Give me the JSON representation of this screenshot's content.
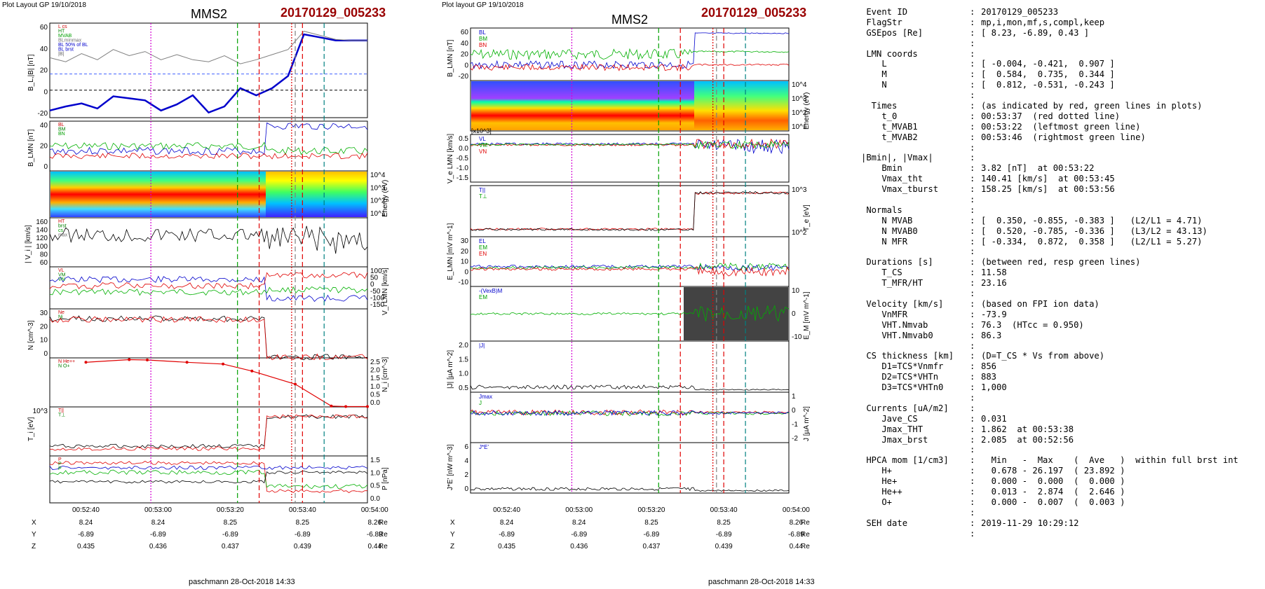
{
  "left_panel": {
    "header": "Plot Layout GP 19/10/2018",
    "spacecraft": "MMS2",
    "event": "20170129_005233",
    "footer": "paschmann 28-Oct-2018 14:33",
    "xtick_labels": [
      "00:52:40",
      "00:53:00",
      "00:53:20",
      "00:53:40",
      "00:54:00"
    ],
    "coord_rows": [
      {
        "label": "X",
        "values": [
          "8.24",
          "8.24",
          "8.25",
          "8.25",
          "8.26"
        ],
        "unit": "Re"
      },
      {
        "label": "Y",
        "values": [
          "-6.89",
          "-6.89",
          "-6.89",
          "-6.89",
          "-6.89"
        ],
        "unit": "Re"
      },
      {
        "label": "Z",
        "values": [
          "0.435",
          "0.436",
          "0.437",
          "0.439",
          "0.44"
        ],
        "unit": "Re"
      }
    ]
  },
  "middle_panel": {
    "header": "Plot layout GP 19/10/2018",
    "spacecraft": "MMS2",
    "event": "20170129_005233",
    "footer": "paschmann 28-Oct-2018 14:33",
    "xtick_labels": [
      "00:52:40",
      "00:53:00",
      "00:53:20",
      "00:53:40",
      "00:54:00"
    ],
    "coord_rows": [
      {
        "label": "X",
        "values": [
          "8.24",
          "8.24",
          "8.25",
          "8.25",
          "8.26"
        ],
        "unit": "Re"
      },
      {
        "label": "Y",
        "values": [
          "-6.89",
          "-6.89",
          "-6.89",
          "-6.89",
          "-6.89"
        ],
        "unit": "Re"
      },
      {
        "label": "Z",
        "values": [
          "0.435",
          "0.436",
          "0.437",
          "0.439",
          "0.44"
        ],
        "unit": "Re"
      }
    ]
  },
  "chart_data": [
    {
      "type": "line",
      "figure": "left",
      "x_range_seconds_after_0052": [
        30,
        118
      ],
      "markers": [
        {
          "time": "00:52:58",
          "style": "dotted",
          "color": "#d400d4"
        },
        {
          "time": "00:53:22",
          "style": "dashed",
          "color": "#00a000"
        },
        {
          "time": "00:53:28",
          "style": "dashed",
          "color": "#e00000"
        },
        {
          "time": "00:53:37",
          "style": "dotted",
          "color": "#e00000"
        },
        {
          "time": "00:53:38",
          "style": "dashed",
          "color": "#808080"
        },
        {
          "time": "00:53:40",
          "style": "dashed",
          "color": "#e00000"
        },
        {
          "time": "00:53:46",
          "style": "dashed",
          "color": "#008080"
        }
      ],
      "panels": [
        {
          "ylabel": "B_L,|B| [nT]",
          "ticks": [
            "60",
            "40",
            "20",
            "0",
            "-20"
          ],
          "legend": [
            "L cs",
            "HT",
            "MVAB",
            "BLminmax",
            "BL 50% of BL",
            "BL brst",
            "|B|"
          ],
          "series": [
            {
              "name": "BL brst",
              "color": "#0000cc",
              "values": [
                -20,
                -16,
                -13,
                -18,
                -6,
                -8,
                -10,
                -20,
                -14,
                -5,
                -22,
                -16,
                2,
                -5,
                2,
                14,
                55,
                52,
                49,
                49,
                49
              ]
            }
          ]
        },
        {
          "ylabel": "B_LMN [nT]",
          "ticks": [
            "40",
            "20",
            "0"
          ],
          "legend": [
            "BL",
            "BM",
            "BN"
          ]
        },
        {
          "ylabel": "Energy (eV)",
          "ticks": [
            "10^4",
            "10^3",
            "10^2",
            "10^1"
          ],
          "type": "heatmap"
        },
        {
          "ylabel": "|V_i| [km/s]",
          "ticks": [
            "160",
            "140",
            "120",
            "100",
            "80",
            "60"
          ],
          "legend": [
            "HT",
            "brst",
            "cs",
            "max"
          ]
        },
        {
          "ylabel": "V_i LMN [km/s]",
          "ticks": [
            "100",
            "50",
            "0",
            "-50",
            "-100",
            "-150"
          ],
          "legend": [
            "VL",
            "VM",
            "VN"
          ]
        },
        {
          "ylabel": "N [cm^-3]",
          "ticks": [
            "30",
            "20",
            "10",
            "0"
          ],
          "legend": [
            "Ne",
            "Ni"
          ]
        },
        {
          "ylabel": "N_i [cm^-3]",
          "ticks": [
            "2.5",
            "2.0",
            "1.5",
            "1.0",
            "0.5",
            "0.0"
          ],
          "legend": [
            "N He++",
            "N O+"
          ],
          "series": [
            {
              "name": "N He++",
              "color": "#e00000",
              "values": [
                2.55,
                2.7,
                2.68,
                2.55,
                2.45,
                2.05,
                1.3,
                0.05,
                0.02,
                0.02
              ]
            }
          ]
        },
        {
          "ylabel": "T_i [eV]",
          "ticks": [
            "10^3"
          ],
          "legend": [
            "T||",
            "T⊥"
          ]
        },
        {
          "ylabel": "P [nPa]",
          "ticks": [
            "1.5",
            "1.0",
            "0.5",
            "0.0"
          ],
          "legend": [
            "P",
            "P",
            "P"
          ]
        }
      ]
    },
    {
      "type": "line",
      "figure": "middle",
      "panels": [
        {
          "ylabel": "B_LMN [nT]",
          "ticks": [
            "60",
            "40",
            "20",
            "0",
            "-20"
          ],
          "legend": [
            "BL",
            "BM",
            "BN"
          ]
        },
        {
          "ylabel": "Energy (eV)",
          "ticks": [
            "10^4",
            "10^3",
            "10^2",
            "10^1"
          ],
          "type": "heatmap"
        },
        {
          "ylabel": "V_e LMN [km/s]",
          "ticks": [
            "0.5",
            "0.0",
            "-0.5",
            "-1.0",
            "-1.5"
          ],
          "scale": "[x10^3]",
          "legend": [
            "VL",
            "VM",
            "VN"
          ]
        },
        {
          "ylabel": "T_e [eV]",
          "ticks": [
            "10^3",
            "10^2"
          ],
          "legend": [
            "T||",
            "T⊥"
          ]
        },
        {
          "ylabel": "E_LMN [mV m^-1]",
          "ticks": [
            "30",
            "20",
            "10",
            "0",
            "-10"
          ],
          "legend": [
            "EL",
            "EM",
            "EN"
          ]
        },
        {
          "ylabel": "E_M [mV m^-1]",
          "ticks": [
            "10",
            "0",
            "-10"
          ],
          "legend": [
            "-(VexB)M",
            "EM"
          ]
        },
        {
          "ylabel": "|J| [µA m^-2]",
          "ticks": [
            "2.0",
            "1.5",
            "1.0",
            "0.5"
          ],
          "legend": [
            "|J|"
          ]
        },
        {
          "ylabel": "J [µA m^-2]",
          "ticks": [
            "1",
            "0",
            "-1",
            "-2"
          ],
          "legend": [
            "Jmax",
            "J"
          ]
        },
        {
          "ylabel": "J*E' [nW m^-3]",
          "ticks": [
            "6",
            "4",
            "2",
            "0"
          ],
          "legend": [
            "J*E'"
          ]
        }
      ]
    }
  ],
  "summary": [
    {
      "label": " Event ID",
      "value": "20170129_005233"
    },
    {
      "label": " FlagStr",
      "value": "mp,i,mon,mf,s,compl,keep"
    },
    {
      "label": " GSEpos [Re]",
      "value": "[ 8.23, -6.89, 0.43 ]"
    },
    {
      "label": "",
      "value": ""
    },
    {
      "label": " LMN coords",
      "value": ""
    },
    {
      "label": "    L",
      "value": "[ -0.004, -0.421,  0.907 ]"
    },
    {
      "label": "    M",
      "value": "[  0.584,  0.735,  0.344 ]"
    },
    {
      "label": "    N",
      "value": "[  0.812, -0.531, -0.243 ]"
    },
    {
      "label": "",
      "value": ""
    },
    {
      "label": "  Times",
      "value": "(as indicated by red, green lines in plots)"
    },
    {
      "label": "    t_0",
      "value": "00:53:37  (red dotted line)"
    },
    {
      "label": "    t_MVAB1",
      "value": "00:53:22  (leftmost green line)"
    },
    {
      "label": "    t_MVAB2",
      "value": "00:53:46  (rightmost green line)"
    },
    {
      "label": "",
      "value": ""
    },
    {
      "label": "|Bmin|, |Vmax|",
      "value": ""
    },
    {
      "label": "    Bmin",
      "value": "3.82 [nT]  at 00:53:22"
    },
    {
      "label": "    Vmax_tht",
      "value": "140.41 [km/s]  at 00:53:45"
    },
    {
      "label": "    Vmax_tburst",
      "value": "158.25 [km/s]  at 00:53:56"
    },
    {
      "label": "",
      "value": ""
    },
    {
      "label": " Normals",
      "value": ""
    },
    {
      "label": "    N MVAB",
      "value": "[  0.350, -0.855, -0.383 ]   (L2/L1 = 4.71)"
    },
    {
      "label": "    N MVAB0",
      "value": "[  0.520, -0.785, -0.336 ]   (L3/L2 = 43.13)"
    },
    {
      "label": "    N MFR",
      "value": "[ -0.334,  0.872,  0.358 ]   (L2/L1 = 5.27)"
    },
    {
      "label": "",
      "value": ""
    },
    {
      "label": " Durations [s]",
      "value": "(between red, resp green lines)"
    },
    {
      "label": "    T_CS",
      "value": "11.58"
    },
    {
      "label": "    T_MFR/HT",
      "value": "23.16"
    },
    {
      "label": "",
      "value": ""
    },
    {
      "label": " Velocity [km/s]",
      "value": "(based on FPI ion data)"
    },
    {
      "label": "    VnMFR",
      "value": "-73.9"
    },
    {
      "label": "    VHT.Nmvab",
      "value": "76.3  (HTcc = 0.950)"
    },
    {
      "label": "    VHT.Nmvab0",
      "value": "86.3"
    },
    {
      "label": "",
      "value": ""
    },
    {
      "label": " CS thickness [km]",
      "value": "(D=T_CS * Vs from above)"
    },
    {
      "label": "    D1=TCS*Vnmfr",
      "value": "856"
    },
    {
      "label": "    D2=TCS*VHTn",
      "value": "883"
    },
    {
      "label": "    D3=TCS*VHTn0",
      "value": "1,000"
    },
    {
      "label": "",
      "value": ""
    },
    {
      "label": " Currents [uA/m2]",
      "value": ""
    },
    {
      "label": "    Jave_CS",
      "value": "0.031"
    },
    {
      "label": "    Jmax_THT",
      "value": "1.862  at 00:53:38"
    },
    {
      "label": "    Jmax_brst",
      "value": "2.085  at 00:52:56"
    },
    {
      "label": "",
      "value": ""
    },
    {
      "label": " HPCA mom [1/cm3]",
      "value": "  Min   -  Max    (  Ave   )  within full brst int"
    },
    {
      "label": "    H+",
      "value": "  0.678 - 26.197  ( 23.892 )"
    },
    {
      "label": "    He+",
      "value": "  0.000 -  0.000  (  0.000 )"
    },
    {
      "label": "    He++",
      "value": "  0.013 -  2.874  (  2.646 )"
    },
    {
      "label": "    O+",
      "value": "  0.000 -  0.007  (  0.003 )"
    },
    {
      "label": "",
      "value": ""
    },
    {
      "label": " SEH date",
      "value": "2019-11-29 10:29:12"
    },
    {
      "label": "",
      "value": ""
    }
  ]
}
